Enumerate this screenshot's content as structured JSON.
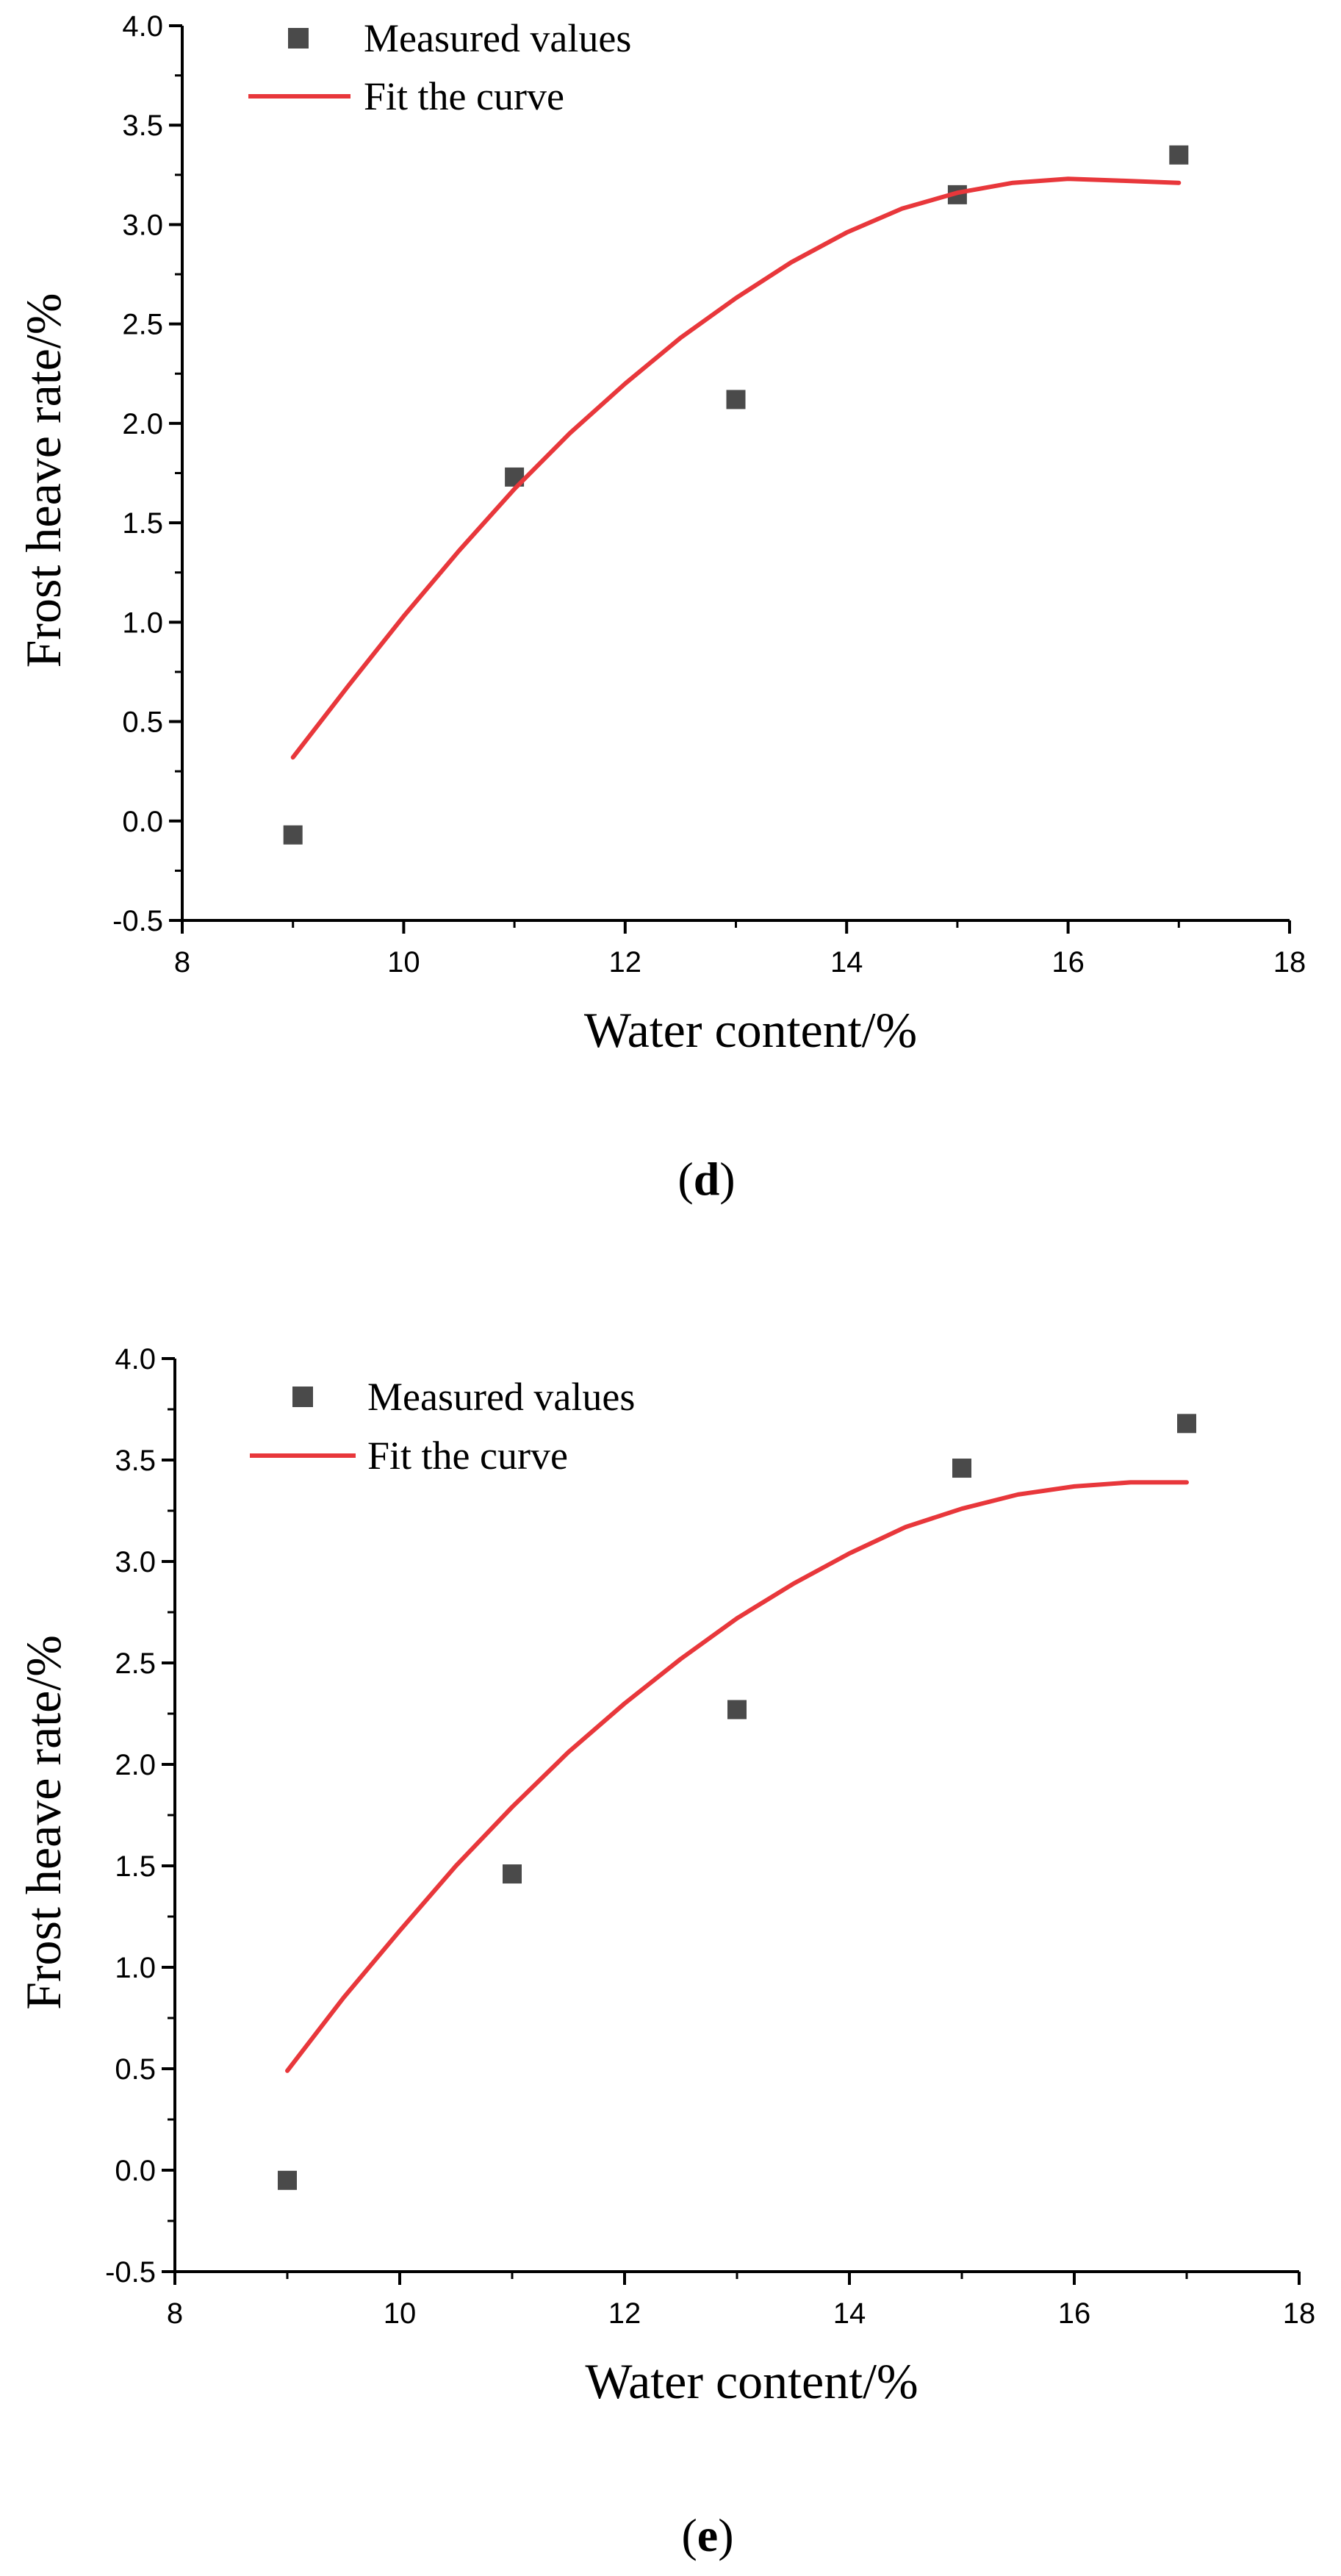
{
  "chart_data": [
    {
      "type": "scatter",
      "panel_label": "d",
      "xlabel": "Water content/%",
      "ylabel": "Frost heave rate/%",
      "xlim": [
        8,
        18
      ],
      "ylim": [
        -0.5,
        4.0
      ],
      "xticks": [
        "8",
        "10",
        "12",
        "14",
        "16",
        "18"
      ],
      "yticks": [
        "-0.5",
        "0.0",
        "0.5",
        "1.0",
        "1.5",
        "2.0",
        "2.5",
        "3.0",
        "3.5",
        "4.0"
      ],
      "legend": {
        "placement": "top-left",
        "entries": [
          "Measured values",
          "Fit the curve"
        ]
      },
      "grid": false,
      "series": [
        {
          "name": "Measured values",
          "kind": "scatter",
          "marker": "square",
          "color": "#4a4a4a",
          "x": [
            9,
            11,
            13,
            15,
            17
          ],
          "y": [
            -0.07,
            1.73,
            2.12,
            3.15,
            3.35
          ]
        },
        {
          "name": "Fit the curve",
          "kind": "line",
          "color": "#e8373b",
          "x": [
            9,
            9.5,
            10,
            10.5,
            11,
            11.5,
            12,
            12.5,
            13,
            13.5,
            14,
            14.5,
            15,
            15.5,
            16,
            16.5,
            17
          ],
          "y": [
            0.32,
            0.68,
            1.03,
            1.36,
            1.67,
            1.95,
            2.2,
            2.43,
            2.63,
            2.81,
            2.96,
            3.08,
            3.16,
            3.21,
            3.23,
            3.22,
            3.21
          ]
        }
      ]
    },
    {
      "type": "scatter",
      "panel_label": "e",
      "xlabel": "Water content/%",
      "ylabel": "Frost heave rate/%",
      "xlim": [
        8,
        18
      ],
      "ylim": [
        -0.5,
        4.0
      ],
      "xticks": [
        "8",
        "10",
        "12",
        "14",
        "16",
        "18"
      ],
      "yticks": [
        "-0.5",
        "0.0",
        "0.5",
        "1.0",
        "1.5",
        "2.0",
        "2.5",
        "3.0",
        "3.5",
        "4.0"
      ],
      "legend": {
        "placement": "top-left",
        "entries": [
          "Measured values",
          "Fit the curve"
        ]
      },
      "grid": false,
      "series": [
        {
          "name": "Measured values",
          "kind": "scatter",
          "marker": "square",
          "color": "#4a4a4a",
          "x": [
            9,
            11,
            13,
            15,
            17
          ],
          "y": [
            -0.05,
            1.46,
            2.27,
            3.46,
            3.68
          ]
        },
        {
          "name": "Fit the curve",
          "kind": "line",
          "color": "#e8373b",
          "x": [
            9,
            9.5,
            10,
            10.5,
            11,
            11.5,
            12,
            12.5,
            13,
            13.5,
            14,
            14.5,
            15,
            15.5,
            16,
            16.5,
            17
          ],
          "y": [
            0.49,
            0.85,
            1.18,
            1.5,
            1.79,
            2.06,
            2.3,
            2.52,
            2.72,
            2.89,
            3.04,
            3.17,
            3.26,
            3.33,
            3.37,
            3.39,
            3.39
          ]
        }
      ]
    }
  ]
}
